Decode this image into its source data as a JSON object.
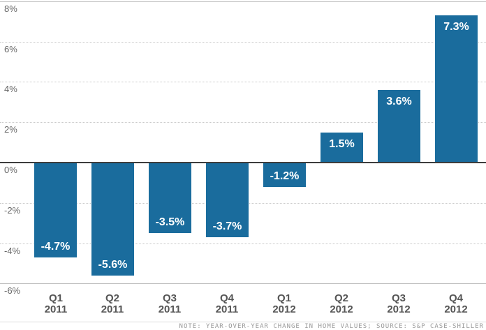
{
  "chart_data": {
    "type": "bar",
    "title": "",
    "xlabel": "",
    "ylabel": "",
    "categories": [
      {
        "quarter": "Q1",
        "year": "2011"
      },
      {
        "quarter": "Q2",
        "year": "2011"
      },
      {
        "quarter": "Q3",
        "year": "2011"
      },
      {
        "quarter": "Q4",
        "year": "2011"
      },
      {
        "quarter": "Q1",
        "year": "2012"
      },
      {
        "quarter": "Q2",
        "year": "2012"
      },
      {
        "quarter": "Q3",
        "year": "2012"
      },
      {
        "quarter": "Q4",
        "year": "2012"
      }
    ],
    "values": [
      -4.7,
      -5.6,
      -3.5,
      -3.7,
      -1.2,
      1.5,
      3.6,
      7.3
    ],
    "value_labels": [
      "-4.7%",
      "-5.6%",
      "-3.5%",
      "-3.7%",
      "-1.2%",
      "1.5%",
      "3.6%",
      "7.3%"
    ],
    "ylim": [
      -6,
      8
    ],
    "yticks": [
      8,
      6,
      4,
      2,
      0,
      -2,
      -4,
      -6
    ],
    "ytick_labels": [
      "8%",
      "6%",
      "4%",
      "2%",
      "0%",
      "-2%",
      "-4%",
      "-6%"
    ],
    "grid": "horizontal-dotted",
    "legend": "none",
    "note": "NOTE: YEAR-OVER-YEAR CHANGE IN HOME VALUES; SOURCE: S&P CASE-SHILLER",
    "bar_color": "#1A6C9D",
    "zero_line_color": "#3d3d3d",
    "value_label_color": "#ffffff"
  }
}
